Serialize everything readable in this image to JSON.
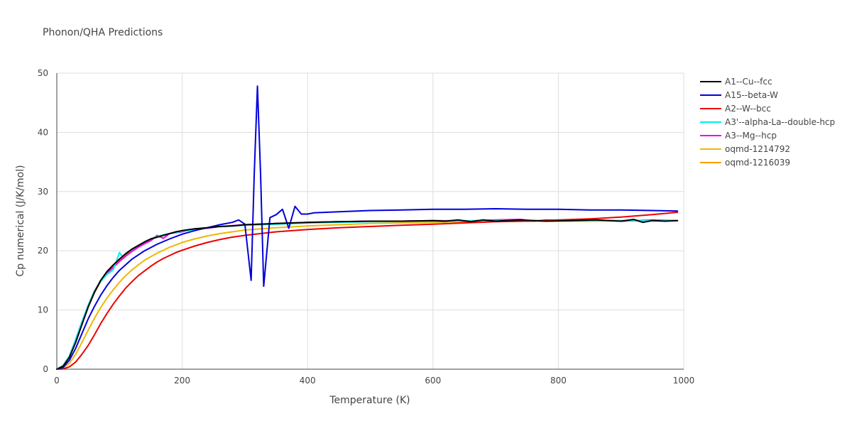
{
  "chart_data": {
    "type": "line",
    "title": "Phonon/QHA Predictions",
    "xlabel": "Temperature (K)",
    "ylabel": "Cp numerical (J/K/mol)",
    "xlim": [
      0,
      1000
    ],
    "ylim": [
      0,
      50
    ],
    "xticks": [
      0,
      200,
      400,
      600,
      800,
      1000
    ],
    "yticks": [
      0,
      10,
      20,
      30,
      40,
      50
    ],
    "grid": true,
    "legend_position": "right",
    "series": [
      {
        "name": "A1--Cu--fcc",
        "color": "#000000",
        "points": [
          [
            0,
            0
          ],
          [
            10,
            0.5
          ],
          [
            20,
            2
          ],
          [
            30,
            4.5
          ],
          [
            40,
            7.5
          ],
          [
            50,
            10.5
          ],
          [
            60,
            13
          ],
          [
            70,
            15
          ],
          [
            80,
            16.5
          ],
          [
            90,
            17.6
          ],
          [
            100,
            18.6
          ],
          [
            110,
            19.5
          ],
          [
            120,
            20.3
          ],
          [
            130,
            20.9
          ],
          [
            140,
            21.5
          ],
          [
            150,
            22
          ],
          [
            160,
            22.3
          ],
          [
            170,
            22.6
          ],
          [
            180,
            22.9
          ],
          [
            190,
            23.2
          ],
          [
            200,
            23.4
          ],
          [
            220,
            23.7
          ],
          [
            240,
            23.9
          ],
          [
            260,
            24.1
          ],
          [
            280,
            24.2
          ],
          [
            300,
            24.4
          ],
          [
            350,
            24.6
          ],
          [
            400,
            24.8
          ],
          [
            450,
            24.9
          ],
          [
            500,
            25
          ],
          [
            550,
            25
          ],
          [
            600,
            25.1
          ],
          [
            620,
            25
          ],
          [
            640,
            25.2
          ],
          [
            660,
            24.9
          ],
          [
            680,
            25.2
          ],
          [
            700,
            25
          ],
          [
            740,
            25.2
          ],
          [
            780,
            25
          ],
          [
            820,
            25.1
          ],
          [
            860,
            25.2
          ],
          [
            900,
            25
          ],
          [
            920,
            25.3
          ],
          [
            935,
            24.8
          ],
          [
            950,
            25.1
          ],
          [
            970,
            25
          ],
          [
            990,
            25.1
          ]
        ]
      },
      {
        "name": "A15--beta-W",
        "color": "#0000dd",
        "points": [
          [
            0,
            0
          ],
          [
            10,
            0.3
          ],
          [
            20,
            1.5
          ],
          [
            30,
            3.5
          ],
          [
            40,
            6
          ],
          [
            50,
            8.5
          ],
          [
            60,
            10.6
          ],
          [
            70,
            12.5
          ],
          [
            80,
            14.1
          ],
          [
            90,
            15.5
          ],
          [
            100,
            16.7
          ],
          [
            120,
            18.6
          ],
          [
            140,
            20
          ],
          [
            160,
            21.1
          ],
          [
            180,
            22
          ],
          [
            200,
            22.8
          ],
          [
            220,
            23.4
          ],
          [
            240,
            23.9
          ],
          [
            260,
            24.4
          ],
          [
            280,
            24.8
          ],
          [
            290,
            25.2
          ],
          [
            300,
            24.5
          ],
          [
            310,
            15
          ],
          [
            315,
            33
          ],
          [
            320,
            47.8
          ],
          [
            325,
            33
          ],
          [
            330,
            14
          ],
          [
            340,
            25.6
          ],
          [
            350,
            26.1
          ],
          [
            360,
            27
          ],
          [
            370,
            23.8
          ],
          [
            380,
            27.5
          ],
          [
            390,
            26.2
          ],
          [
            400,
            26.2
          ],
          [
            410,
            26.4
          ],
          [
            450,
            26.6
          ],
          [
            500,
            26.8
          ],
          [
            550,
            26.9
          ],
          [
            600,
            27
          ],
          [
            650,
            27
          ],
          [
            700,
            27.1
          ],
          [
            750,
            27
          ],
          [
            800,
            27
          ],
          [
            850,
            26.9
          ],
          [
            900,
            26.9
          ],
          [
            950,
            26.8
          ],
          [
            990,
            26.7
          ]
        ]
      },
      {
        "name": "A2--W--bcc",
        "color": "#ee0000",
        "points": [
          [
            0,
            0
          ],
          [
            10,
            0.05
          ],
          [
            20,
            0.4
          ],
          [
            30,
            1.2
          ],
          [
            40,
            2.5
          ],
          [
            50,
            4
          ],
          [
            60,
            5.8
          ],
          [
            70,
            7.7
          ],
          [
            80,
            9.4
          ],
          [
            90,
            11
          ],
          [
            100,
            12.4
          ],
          [
            110,
            13.7
          ],
          [
            120,
            14.8
          ],
          [
            130,
            15.8
          ],
          [
            140,
            16.6
          ],
          [
            150,
            17.4
          ],
          [
            160,
            18.1
          ],
          [
            170,
            18.7
          ],
          [
            180,
            19.2
          ],
          [
            190,
            19.7
          ],
          [
            200,
            20.1
          ],
          [
            220,
            20.8
          ],
          [
            240,
            21.4
          ],
          [
            260,
            21.9
          ],
          [
            280,
            22.3
          ],
          [
            300,
            22.6
          ],
          [
            350,
            23.2
          ],
          [
            400,
            23.6
          ],
          [
            450,
            23.9
          ],
          [
            500,
            24.1
          ],
          [
            550,
            24.3
          ],
          [
            600,
            24.5
          ],
          [
            650,
            24.7
          ],
          [
            700,
            24.9
          ],
          [
            750,
            25
          ],
          [
            800,
            25.2
          ],
          [
            850,
            25.4
          ],
          [
            900,
            25.7
          ],
          [
            950,
            26.1
          ],
          [
            990,
            26.5
          ]
        ]
      },
      {
        "name": "A3'--alpha-La--double-hcp",
        "color": "#00eeee",
        "points": [
          [
            0,
            0
          ],
          [
            10,
            0.6
          ],
          [
            20,
            2.2
          ],
          [
            30,
            5
          ],
          [
            40,
            8
          ],
          [
            50,
            10.8
          ],
          [
            60,
            13.2
          ],
          [
            70,
            14.8
          ],
          [
            80,
            16
          ],
          [
            90,
            16.8
          ],
          [
            100,
            19.7
          ],
          [
            105,
            19
          ],
          [
            110,
            19.6
          ],
          [
            120,
            20.2
          ],
          [
            130,
            20.9
          ],
          [
            140,
            21.5
          ],
          [
            150,
            22
          ],
          [
            160,
            22.4
          ],
          [
            170,
            22.7
          ],
          [
            180,
            22.9
          ],
          [
            200,
            23.3
          ],
          [
            220,
            23.6
          ],
          [
            250,
            24
          ],
          [
            300,
            24.3
          ],
          [
            350,
            24.5
          ],
          [
            400,
            24.7
          ],
          [
            500,
            24.9
          ],
          [
            600,
            25
          ],
          [
            700,
            25.1
          ],
          [
            800,
            25.1
          ],
          [
            900,
            25.1
          ],
          [
            990,
            25.1
          ]
        ]
      },
      {
        "name": "A3--Mg--hcp",
        "color": "#ee00ee",
        "points": [
          [
            0,
            0
          ],
          [
            10,
            0.6
          ],
          [
            20,
            2.2
          ],
          [
            30,
            5
          ],
          [
            40,
            8
          ],
          [
            50,
            10.8
          ],
          [
            60,
            13.2
          ],
          [
            70,
            14.9
          ],
          [
            80,
            16.2
          ],
          [
            90,
            17.2
          ],
          [
            100,
            18.2
          ],
          [
            110,
            19.1
          ],
          [
            120,
            19.9
          ],
          [
            130,
            20.6
          ],
          [
            140,
            21.2
          ],
          [
            150,
            21.7
          ],
          [
            160,
            22.6
          ],
          [
            170,
            22.1
          ],
          [
            180,
            22.9
          ],
          [
            200,
            23.2
          ],
          [
            220,
            23.7
          ],
          [
            240,
            23.8
          ],
          [
            260,
            24.1
          ],
          [
            300,
            24.4
          ],
          [
            350,
            24.6
          ],
          [
            400,
            24.8
          ],
          [
            450,
            24.9
          ],
          [
            500,
            25
          ],
          [
            550,
            25
          ],
          [
            600,
            25.1
          ],
          [
            650,
            25
          ],
          [
            700,
            25.2
          ],
          [
            740,
            25.3
          ],
          [
            760,
            25
          ],
          [
            780,
            25.2
          ],
          [
            820,
            25.1
          ],
          [
            860,
            25.2
          ],
          [
            900,
            25
          ],
          [
            950,
            25.2
          ],
          [
            990,
            25.1
          ]
        ]
      },
      {
        "name": "oqmd-1214792",
        "color": "#eeb800",
        "points": [
          [
            0,
            0
          ],
          [
            10,
            0.2
          ],
          [
            20,
            1
          ],
          [
            30,
            2.5
          ],
          [
            40,
            4.5
          ],
          [
            50,
            6.6
          ],
          [
            60,
            8.6
          ],
          [
            70,
            10.4
          ],
          [
            80,
            12
          ],
          [
            90,
            13.4
          ],
          [
            100,
            14.7
          ],
          [
            110,
            15.8
          ],
          [
            120,
            16.8
          ],
          [
            130,
            17.6
          ],
          [
            140,
            18.4
          ],
          [
            150,
            19
          ],
          [
            160,
            19.6
          ],
          [
            170,
            20.1
          ],
          [
            180,
            20.6
          ],
          [
            190,
            21
          ],
          [
            200,
            21.4
          ],
          [
            220,
            22
          ],
          [
            240,
            22.5
          ],
          [
            260,
            22.9
          ],
          [
            280,
            23.2
          ],
          [
            300,
            23.5
          ],
          [
            350,
            23.9
          ],
          [
            400,
            24.2
          ],
          [
            450,
            24.4
          ],
          [
            500,
            24.6
          ],
          [
            550,
            24.7
          ],
          [
            600,
            24.8
          ],
          [
            650,
            24.9
          ],
          [
            700,
            24.95
          ],
          [
            750,
            25
          ],
          [
            800,
            25
          ],
          [
            850,
            25
          ],
          [
            900,
            25.05
          ],
          [
            950,
            25.05
          ],
          [
            990,
            25.1
          ]
        ]
      },
      {
        "name": "oqmd-1216039",
        "color": "#ff9900",
        "points": [
          [
            0,
            0
          ],
          [
            10,
            0.5
          ],
          [
            20,
            2
          ],
          [
            30,
            4.6
          ],
          [
            40,
            7.6
          ],
          [
            50,
            10.5
          ],
          [
            60,
            12.9
          ],
          [
            70,
            14.8
          ],
          [
            80,
            16.2
          ],
          [
            90,
            17.4
          ],
          [
            100,
            18.4
          ],
          [
            110,
            19.3
          ],
          [
            120,
            20.1
          ],
          [
            130,
            20.8
          ],
          [
            140,
            21.4
          ],
          [
            150,
            21.9
          ],
          [
            160,
            22.3
          ],
          [
            170,
            22.6
          ],
          [
            180,
            22.9
          ],
          [
            200,
            23.3
          ],
          [
            220,
            23.6
          ],
          [
            250,
            24
          ],
          [
            300,
            24.3
          ],
          [
            350,
            24.6
          ],
          [
            400,
            24.8
          ],
          [
            450,
            24.9
          ],
          [
            500,
            25
          ],
          [
            550,
            25
          ],
          [
            600,
            25.1
          ],
          [
            700,
            25.1
          ],
          [
            800,
            25.1
          ],
          [
            900,
            25.1
          ],
          [
            990,
            25.1
          ]
        ]
      }
    ]
  }
}
